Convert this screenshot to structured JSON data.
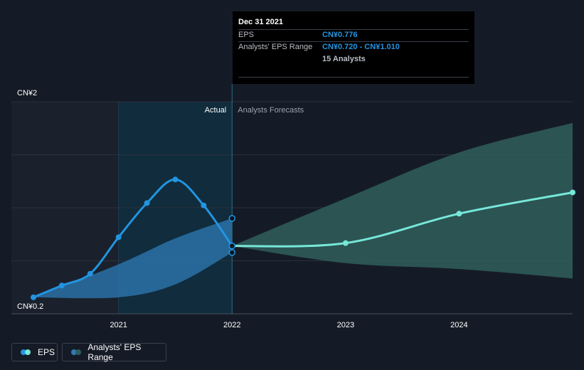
{
  "tooltip": {
    "date": "Dec 31 2021",
    "rows": [
      {
        "label": "EPS",
        "value": "CN¥0.776"
      },
      {
        "label": "Analysts' EPS Range",
        "value": "CN¥0.720 - CN¥1.010"
      },
      {
        "label": "",
        "value": "15 Analysts"
      }
    ]
  },
  "legend": {
    "eps_label": "EPS",
    "range_label": "Analysts' EPS Range"
  },
  "colors": {
    "background": "#151b26",
    "eps_actual": "#2394df",
    "eps_forecast": "#77e7d8",
    "range_actual": "#2d7bb5",
    "range_forecast": "#2f5e5c",
    "tooltip_value": "#2394df",
    "tooltip_muted": "#b8bcc4"
  },
  "chart_data": {
    "type": "line",
    "title": "",
    "xlabel": "",
    "ylabel": "",
    "ylim": [
      0.2,
      2.0
    ],
    "xlim": [
      2020.25,
      2025.0
    ],
    "y_tick_labels": [
      "CN¥2",
      "CN¥0.2"
    ],
    "x_ticks": [
      2021,
      2022,
      2023,
      2024
    ],
    "x_tick_labels": [
      "2021",
      "2022",
      "2023",
      "2024"
    ],
    "section_labels": {
      "actual": "Actual",
      "forecast": "Analysts Forecasts"
    },
    "divider_x": 2022.0,
    "series": [
      {
        "name": "EPS",
        "kind": "actual",
        "x": [
          2020.25,
          2020.5,
          2020.75,
          2021.0,
          2021.25,
          2021.5,
          2021.75,
          2022.0
        ],
        "values": [
          0.34,
          0.44,
          0.54,
          0.85,
          1.14,
          1.34,
          1.12,
          0.776
        ]
      },
      {
        "name": "EPS",
        "kind": "forecast",
        "x": [
          2022.0,
          2023.0,
          2024.0,
          2025.0
        ],
        "values": [
          0.776,
          0.8,
          1.05,
          1.23
        ]
      }
    ],
    "range": [
      {
        "name": "Analysts' EPS Range",
        "kind": "actual",
        "x": [
          2020.25,
          2021.0,
          2021.5,
          2022.0
        ],
        "low": [
          0.34,
          0.34,
          0.45,
          0.72
        ],
        "high": [
          0.34,
          0.62,
          0.84,
          1.01
        ]
      },
      {
        "name": "Analysts' EPS Range",
        "kind": "forecast",
        "x": [
          2022.0,
          2023.0,
          2024.0,
          2025.0
        ],
        "low": [
          0.776,
          0.63,
          0.58,
          0.5
        ],
        "high": [
          0.776,
          1.18,
          1.57,
          1.82
        ]
      }
    ]
  }
}
